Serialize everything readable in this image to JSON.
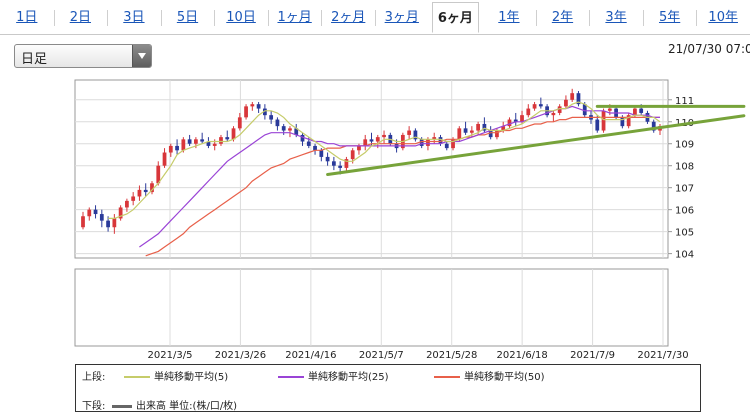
{
  "tabs": [
    {
      "label": "1日"
    },
    {
      "label": "2日"
    },
    {
      "label": "3日"
    },
    {
      "label": "5日"
    },
    {
      "label": "10日"
    },
    {
      "label": "1ヶ月"
    },
    {
      "label": "2ヶ月"
    },
    {
      "label": "3ヶ月"
    },
    {
      "label": "6ヶ月",
      "active": true
    },
    {
      "label": "1年"
    },
    {
      "label": "2年"
    },
    {
      "label": "3年"
    },
    {
      "label": "5年"
    },
    {
      "label": "10年"
    }
  ],
  "period_select": {
    "value": "日足"
  },
  "timestamp": "21/07/30 07:0",
  "legend": {
    "upper_label": "上段:",
    "lower_label": "下段:",
    "items": [
      {
        "label": "単純移動平均(5)",
        "color": "#c6cc6a"
      },
      {
        "label": "単純移動平均(25)",
        "color": "#9a44d6"
      },
      {
        "label": "単純移動平均(50)",
        "color": "#e8604a"
      }
    ],
    "volume": {
      "label": "出来高 単位:(株/口/枚)",
      "color": "#666666"
    }
  },
  "chart_data": {
    "type": "candlestick",
    "x_ticks": [
      "2021/3/5",
      "2021/3/26",
      "2021/4/16",
      "2021/5/7",
      "2021/5/28",
      "2021/6/18",
      "2021/7/9",
      "2021/7/30"
    ],
    "y_ticks": [
      104,
      105,
      106,
      107,
      108,
      109,
      110,
      111
    ],
    "ylim": [
      103.8,
      111.9
    ],
    "grid": true,
    "colors": {
      "up": "#d8363a",
      "down": "#2a3a9a"
    },
    "candles": [
      [
        105.2,
        105.9,
        105.1,
        105.7
      ],
      [
        105.7,
        106.1,
        105.5,
        106.0
      ],
      [
        106.0,
        106.2,
        105.6,
        105.8
      ],
      [
        105.8,
        106.0,
        105.2,
        105.5
      ],
      [
        105.5,
        105.7,
        105.0,
        105.2
      ],
      [
        105.2,
        105.8,
        104.9,
        105.6
      ],
      [
        105.6,
        106.2,
        105.5,
        106.1
      ],
      [
        106.1,
        106.5,
        105.9,
        106.4
      ],
      [
        106.4,
        106.8,
        106.2,
        106.6
      ],
      [
        106.6,
        107.1,
        106.4,
        106.9
      ],
      [
        106.9,
        107.2,
        106.6,
        106.8
      ],
      [
        106.8,
        107.3,
        106.7,
        107.2
      ],
      [
        107.2,
        108.2,
        107.1,
        108.0
      ],
      [
        108.0,
        108.8,
        107.9,
        108.6
      ],
      [
        108.6,
        109.0,
        108.4,
        108.9
      ],
      [
        108.9,
        109.2,
        108.5,
        108.7
      ],
      [
        108.7,
        109.3,
        108.6,
        109.2
      ],
      [
        109.2,
        109.4,
        108.9,
        109.0
      ],
      [
        109.0,
        109.3,
        108.8,
        109.2
      ],
      [
        109.2,
        109.5,
        109.0,
        109.1
      ],
      [
        109.1,
        109.3,
        108.8,
        108.9
      ],
      [
        108.9,
        109.2,
        108.7,
        109.0
      ],
      [
        109.0,
        109.4,
        108.9,
        109.3
      ],
      [
        109.3,
        109.6,
        109.1,
        109.2
      ],
      [
        109.2,
        109.8,
        109.1,
        109.7
      ],
      [
        109.7,
        110.4,
        109.6,
        110.2
      ],
      [
        110.2,
        110.8,
        110.1,
        110.7
      ],
      [
        110.7,
        110.9,
        110.5,
        110.8
      ],
      [
        110.8,
        110.9,
        110.4,
        110.6
      ],
      [
        110.6,
        110.8,
        110.1,
        110.3
      ],
      [
        110.3,
        110.5,
        109.9,
        110.1
      ],
      [
        110.1,
        110.2,
        109.6,
        109.8
      ],
      [
        109.8,
        109.9,
        109.4,
        109.6
      ],
      [
        109.6,
        109.8,
        109.3,
        109.7
      ],
      [
        109.7,
        109.9,
        109.3,
        109.4
      ],
      [
        109.4,
        109.5,
        108.9,
        109.1
      ],
      [
        109.1,
        109.3,
        108.8,
        108.9
      ],
      [
        108.9,
        109.0,
        108.5,
        108.7
      ],
      [
        108.7,
        108.8,
        108.2,
        108.4
      ],
      [
        108.4,
        108.6,
        108.0,
        108.2
      ],
      [
        108.2,
        108.4,
        107.8,
        108.0
      ],
      [
        108.0,
        108.2,
        107.6,
        107.9
      ],
      [
        107.9,
        108.4,
        107.7,
        108.3
      ],
      [
        108.3,
        108.8,
        108.1,
        108.7
      ],
      [
        108.7,
        109.0,
        108.5,
        108.9
      ],
      [
        108.9,
        109.4,
        108.7,
        109.2
      ],
      [
        109.2,
        109.5,
        108.9,
        109.1
      ],
      [
        109.1,
        109.4,
        108.8,
        109.3
      ],
      [
        109.3,
        109.6,
        109.0,
        109.4
      ],
      [
        109.4,
        109.5,
        108.9,
        109.0
      ],
      [
        109.0,
        109.2,
        108.6,
        108.8
      ],
      [
        108.8,
        109.5,
        108.7,
        109.4
      ],
      [
        109.4,
        109.8,
        109.2,
        109.6
      ],
      [
        109.6,
        109.7,
        109.1,
        109.2
      ],
      [
        109.2,
        109.3,
        108.8,
        108.9
      ],
      [
        108.9,
        109.3,
        108.7,
        109.2
      ],
      [
        109.2,
        109.5,
        109.0,
        109.3
      ],
      [
        109.3,
        109.4,
        108.9,
        109.0
      ],
      [
        109.0,
        109.1,
        108.7,
        108.8
      ],
      [
        108.8,
        109.3,
        108.7,
        109.2
      ],
      [
        109.2,
        109.8,
        109.1,
        109.7
      ],
      [
        109.7,
        110.0,
        109.4,
        109.5
      ],
      [
        109.5,
        109.8,
        109.3,
        109.6
      ],
      [
        109.6,
        110.0,
        109.4,
        109.9
      ],
      [
        109.9,
        110.2,
        109.5,
        109.6
      ],
      [
        109.6,
        109.8,
        109.2,
        109.3
      ],
      [
        109.3,
        109.7,
        109.2,
        109.6
      ],
      [
        109.6,
        110.0,
        109.5,
        109.8
      ],
      [
        109.8,
        110.2,
        109.7,
        110.1
      ],
      [
        110.1,
        110.4,
        109.8,
        110.0
      ],
      [
        110.0,
        110.5,
        109.9,
        110.3
      ],
      [
        110.3,
        110.8,
        110.2,
        110.6
      ],
      [
        110.6,
        110.9,
        110.5,
        110.8
      ],
      [
        110.8,
        111.1,
        110.6,
        110.7
      ],
      [
        110.7,
        110.8,
        110.2,
        110.3
      ],
      [
        110.3,
        110.5,
        110.0,
        110.4
      ],
      [
        110.4,
        110.8,
        110.3,
        110.7
      ],
      [
        110.7,
        111.2,
        110.6,
        111.0
      ],
      [
        111.0,
        111.5,
        110.9,
        111.3
      ],
      [
        111.3,
        111.4,
        110.7,
        110.8
      ],
      [
        110.8,
        110.9,
        110.2,
        110.3
      ],
      [
        110.3,
        110.5,
        109.9,
        110.1
      ],
      [
        110.1,
        110.3,
        109.5,
        109.6
      ],
      [
        109.6,
        110.6,
        109.5,
        110.5
      ],
      [
        110.5,
        110.8,
        110.3,
        110.6
      ],
      [
        110.6,
        110.7,
        110.1,
        110.2
      ],
      [
        110.2,
        110.3,
        109.7,
        109.8
      ],
      [
        109.8,
        110.4,
        109.7,
        110.3
      ],
      [
        110.3,
        110.7,
        110.2,
        110.6
      ],
      [
        110.6,
        110.8,
        110.3,
        110.4
      ],
      [
        110.4,
        110.5,
        109.9,
        110.0
      ],
      [
        110.0,
        110.1,
        109.5,
        109.6
      ],
      [
        109.6,
        109.9,
        109.4,
        109.8
      ]
    ],
    "sma5": [
      null,
      null,
      null,
      null,
      105.6,
      105.6,
      105.7,
      105.8,
      106.0,
      106.3,
      106.6,
      106.9,
      107.2,
      107.6,
      108.0,
      108.5,
      108.7,
      108.8,
      108.9,
      109.0,
      109.1,
      109.1,
      109.1,
      109.1,
      109.2,
      109.4,
      109.7,
      110.0,
      110.3,
      110.5,
      110.5,
      110.4,
      110.2,
      109.9,
      109.7,
      109.5,
      109.3,
      109.1,
      108.9,
      108.7,
      108.5,
      108.3,
      108.2,
      108.2,
      108.4,
      108.6,
      108.9,
      109.0,
      109.2,
      109.2,
      109.1,
      109.1,
      109.2,
      109.3,
      109.2,
      109.2,
      109.2,
      109.2,
      109.1,
      109.1,
      109.2,
      109.3,
      109.4,
      109.5,
      109.7,
      109.6,
      109.6,
      109.6,
      109.7,
      109.8,
      109.9,
      110.1,
      110.3,
      110.5,
      110.5,
      110.5,
      110.6,
      110.6,
      110.8,
      110.9,
      110.8,
      110.6,
      110.3,
      110.1,
      110.1,
      110.1,
      110.1,
      110.2,
      110.3,
      110.3,
      110.2,
      110.2,
      110.0
    ],
    "sma25": [
      null,
      null,
      null,
      null,
      null,
      null,
      null,
      null,
      null,
      104.3,
      104.5,
      104.7,
      104.9,
      105.2,
      105.5,
      105.8,
      106.1,
      106.4,
      106.7,
      107.0,
      107.3,
      107.6,
      107.9,
      108.2,
      108.4,
      108.6,
      108.8,
      109.0,
      109.2,
      109.4,
      109.5,
      109.5,
      109.5,
      109.5,
      109.4,
      109.3,
      109.2,
      109.1,
      109.1,
      109.0,
      109.0,
      108.9,
      108.9,
      108.9,
      108.9,
      108.9,
      108.9,
      108.9,
      108.9,
      108.9,
      108.9,
      108.9,
      108.9,
      108.9,
      109.0,
      109.0,
      109.0,
      109.0,
      109.1,
      109.1,
      109.1,
      109.2,
      109.3,
      109.4,
      109.5,
      109.6,
      109.7,
      109.8,
      109.9,
      110.0,
      110.0,
      110.1,
      110.2,
      110.3,
      110.4,
      110.5,
      110.6,
      110.6,
      110.7,
      110.6,
      110.5,
      110.5,
      110.5,
      110.5,
      110.4,
      110.4,
      110.4,
      110.4,
      110.3,
      110.3,
      110.3,
      110.2,
      110.2
    ],
    "sma50": [
      null,
      null,
      null,
      null,
      null,
      null,
      null,
      null,
      null,
      null,
      103.9,
      104.0,
      104.1,
      104.3,
      104.5,
      104.7,
      104.9,
      105.2,
      105.4,
      105.6,
      105.8,
      106.0,
      106.2,
      106.4,
      106.6,
      106.8,
      107.0,
      107.3,
      107.5,
      107.7,
      107.9,
      108.0,
      108.1,
      108.3,
      108.4,
      108.5,
      108.6,
      108.7,
      108.7,
      108.8,
      108.8,
      108.8,
      108.9,
      108.9,
      108.9,
      108.9,
      109.0,
      109.0,
      109.0,
      109.0,
      109.0,
      109.0,
      109.0,
      109.0,
      109.1,
      109.1,
      109.1,
      109.1,
      109.2,
      109.2,
      109.2,
      109.3,
      109.3,
      109.4,
      109.4,
      109.5,
      109.5,
      109.6,
      109.6,
      109.7,
      109.7,
      109.8,
      109.9,
      109.9,
      110.0,
      110.0,
      110.1,
      110.1,
      110.2,
      110.2,
      110.2,
      110.2,
      110.2,
      110.2,
      110.2,
      110.2,
      110.2,
      110.2,
      110.2,
      110.2,
      110.2,
      110.2,
      110.2
    ],
    "trendlines": [
      {
        "from": [
          39,
          107.6
        ],
        "to": [
          99,
          110.0
        ],
        "color": "#77a33a"
      },
      {
        "from": [
          82,
          110.7
        ],
        "to": [
          99,
          110.7
        ],
        "color": "#77a33a"
      }
    ]
  }
}
